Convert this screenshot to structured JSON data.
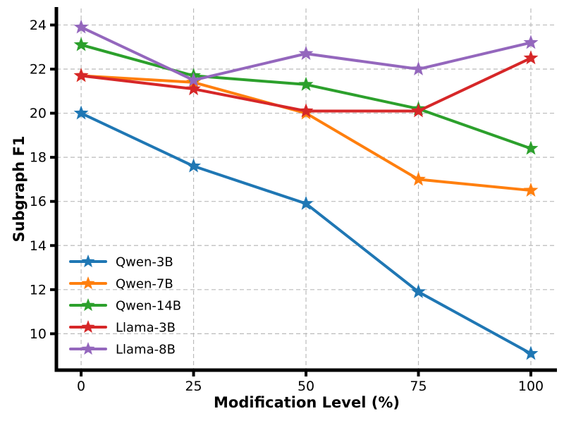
{
  "chart_data": {
    "type": "line",
    "title": "",
    "xlabel": "Modification Level (%)",
    "ylabel": "Subgraph F1",
    "x": [
      0,
      25,
      50,
      75,
      100
    ],
    "series": [
      {
        "name": "Qwen-3B",
        "color": "#1f77b4",
        "values": [
          20.0,
          17.6,
          15.9,
          11.9,
          9.1
        ]
      },
      {
        "name": "Qwen-7B",
        "color": "#ff7f0e",
        "values": [
          21.7,
          21.4,
          20.0,
          17.0,
          16.5
        ]
      },
      {
        "name": "Qwen-14B",
        "color": "#2ca02c",
        "values": [
          23.1,
          21.7,
          21.3,
          20.2,
          18.4
        ]
      },
      {
        "name": "Llama-3B",
        "color": "#d62728",
        "values": [
          21.7,
          21.1,
          20.1,
          20.1,
          22.5
        ]
      },
      {
        "name": "Llama-8B",
        "color": "#9467bd",
        "values": [
          23.9,
          21.5,
          22.7,
          22.0,
          23.2
        ]
      }
    ],
    "xticks": [
      0,
      25,
      50,
      75,
      100
    ],
    "yticks": [
      10,
      12,
      14,
      16,
      18,
      20,
      22,
      24
    ],
    "xlim": [
      -5.5,
      105.8
    ],
    "ylim": [
      8.35,
      24.75
    ],
    "grid": true,
    "grid_color": "#bbbbbb",
    "axis_color": "#000000",
    "marker": "star",
    "legend_position": "lower-left"
  }
}
